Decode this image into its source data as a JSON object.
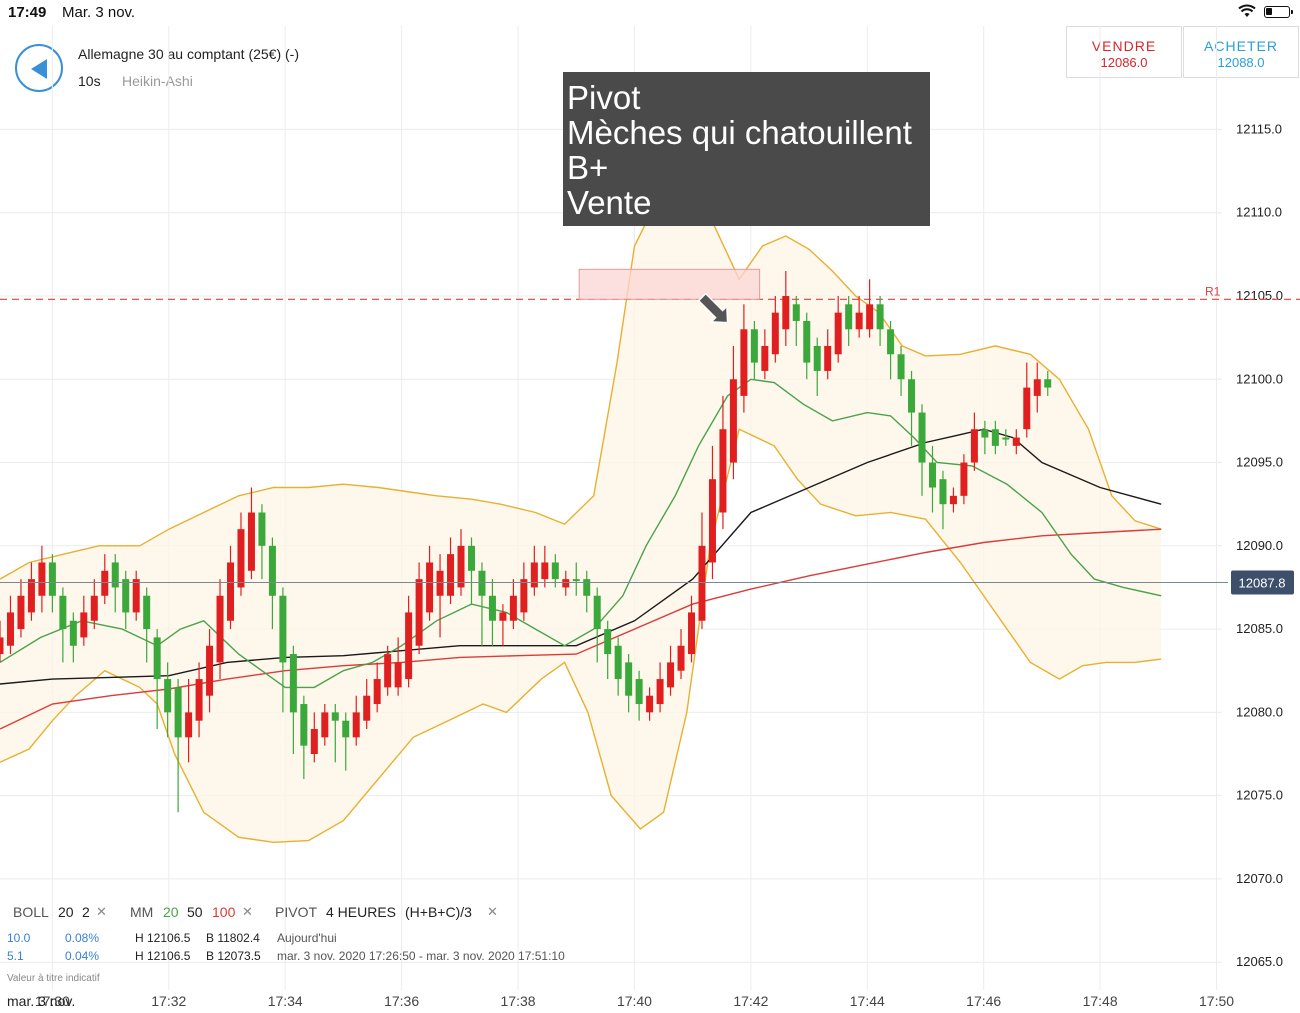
{
  "status": {
    "time": "17:49",
    "date": "Mar. 3 nov."
  },
  "header": {
    "instrument": "Allemagne 30 au comptant (25€) (-)",
    "timeframe": "10s",
    "chart_type": "Heikin-Ashi",
    "sell_label": "VENDRE",
    "sell_price": "12086.0",
    "buy_label": "ACHETER",
    "buy_price": "12088.0"
  },
  "annotation": [
    "Pivot",
    "Mèches qui chatouillent",
    "B+",
    "Vente"
  ],
  "legend": {
    "boll_name": "BOLL",
    "boll_p1": "20",
    "boll_p2": "2",
    "mm_name": "MM",
    "mm_p1": "20",
    "mm_p2": "50",
    "mm_p3": "100",
    "pivot_name": "PIVOT",
    "pivot_p1": "4 HEURES",
    "pivot_p2": "(H+B+C)/3",
    "row1_v1": "10.0",
    "row1_v2": "0.08%",
    "row1_h": "H 12106.5",
    "row1_b": "B 11802.4",
    "row1_period": "Aujourd'hui",
    "row2_v1": "5.1",
    "row2_v2": "0.04%",
    "row2_h": "H 12106.5",
    "row2_b": "B 12073.5",
    "row2_period": "mar. 3 nov. 2020 17:26:50 - mar. 3 nov. 2020 17:51:10",
    "disclaimer": "Valeur à titre indicatif",
    "date_label": "mar. 3 nov."
  },
  "colors": {
    "up": "#3aa83a",
    "down": "#e02020",
    "boll": "#e8b031",
    "mm20": "#4aa24a",
    "mm50": "#1a1a1a",
    "mm100": "#dd3a3a",
    "pivot": "#e04040",
    "accent": "#3a8fd6"
  },
  "chart_data": {
    "type": "candlestick",
    "y_ticks": [
      "12115.0",
      "12110.0",
      "12105.0",
      "12100.0",
      "12095.0",
      "12090.0",
      "12085.0",
      "12080.0",
      "12075.0",
      "12070.0",
      "12065.0"
    ],
    "x_ticks": [
      "17:30",
      "17:32",
      "17:34",
      "17:36",
      "17:38",
      "17:40",
      "17:42",
      "17:44",
      "17:46",
      "17:48",
      "17:50"
    ],
    "ylim": [
      12063,
      12121
    ],
    "x_range_minutes": [
      29.1,
      50.3
    ],
    "current_price": "12087.8",
    "pivot_label": "R1",
    "pivot_value": 12104.8,
    "highlight_zone": {
      "x": [
        39.05,
        42.15
      ],
      "y": [
        12104.8,
        12106.6
      ]
    },
    "arrow_at": {
      "x": 41.6,
      "y": 12103.4
    },
    "candles": [
      [
        29.1,
        12084.5,
        12083.5,
        12085.5,
        12083
      ],
      [
        29.28,
        12086,
        12084,
        12087,
        12083.5
      ],
      [
        29.46,
        12087,
        12085,
        12088,
        12084.5
      ],
      [
        29.64,
        12088,
        12086,
        12089,
        12085.5
      ],
      [
        29.82,
        12089,
        12087,
        12090,
        12086
      ],
      [
        30.0,
        12087,
        12089,
        12089.5,
        12086
      ],
      [
        30.18,
        12085,
        12087,
        12087.5,
        12083
      ],
      [
        30.36,
        12084,
        12085.5,
        12086,
        12083
      ],
      [
        30.54,
        12086,
        12084.5,
        12087,
        12084
      ],
      [
        30.72,
        12087,
        12085.5,
        12088,
        12085
      ],
      [
        30.9,
        12088.5,
        12087,
        12089.5,
        12086.5
      ],
      [
        31.08,
        12087.5,
        12089,
        12089.5,
        12086
      ],
      [
        31.26,
        12086,
        12088,
        12088.5,
        12085
      ],
      [
        31.44,
        12088,
        12086,
        12088.5,
        12085.5
      ],
      [
        31.62,
        12085,
        12087,
        12087.5,
        12083
      ],
      [
        31.8,
        12082,
        12084.5,
        12085,
        12079
      ],
      [
        31.98,
        12080,
        12082,
        12083,
        12078.5
      ],
      [
        32.16,
        12078.5,
        12081.5,
        12082,
        12074
      ],
      [
        32.34,
        12080,
        12078.5,
        12082,
        12077
      ],
      [
        32.52,
        12082,
        12079.5,
        12083,
        12078.5
      ],
      [
        32.7,
        12084,
        12081,
        12085,
        12080
      ],
      [
        32.88,
        12087,
        12083,
        12088,
        12082
      ],
      [
        33.06,
        12089,
        12085.5,
        12090,
        12085
      ],
      [
        33.24,
        12091,
        12087.5,
        12092,
        12087
      ],
      [
        33.42,
        12092,
        12088.5,
        12093.5,
        12088
      ],
      [
        33.6,
        12090,
        12092,
        12092.5,
        12088
      ],
      [
        33.78,
        12087,
        12090,
        12090.5,
        12085
      ],
      [
        33.96,
        12083,
        12087,
        12087.5,
        12080
      ],
      [
        34.14,
        12080,
        12083.5,
        12084,
        12077.5
      ],
      [
        34.32,
        12078,
        12080.5,
        12081,
        12076
      ],
      [
        34.5,
        12079,
        12077.5,
        12080,
        12077
      ],
      [
        34.68,
        12080,
        12078.5,
        12080.5,
        12078
      ],
      [
        34.86,
        12079.5,
        12080,
        12080.5,
        12077
      ],
      [
        35.04,
        12078.5,
        12079.5,
        12080,
        12076.5
      ],
      [
        35.22,
        12080,
        12078.5,
        12081,
        12078
      ],
      [
        35.4,
        12081,
        12079.5,
        12082,
        12079
      ],
      [
        35.58,
        12082,
        12080.5,
        12083,
        12080
      ],
      [
        35.76,
        12083.5,
        12081.5,
        12084,
        12081
      ],
      [
        35.94,
        12083,
        12081.5,
        12084.5,
        12081
      ],
      [
        36.12,
        12086,
        12082,
        12087,
        12081.5
      ],
      [
        36.3,
        12088,
        12084,
        12089,
        12083.5
      ],
      [
        36.48,
        12089,
        12086,
        12090,
        12085.5
      ],
      [
        36.66,
        12088.5,
        12087,
        12089.5,
        12084.5
      ],
      [
        36.84,
        12089.5,
        12087,
        12090.5,
        12086.5
      ],
      [
        37.02,
        12090,
        12087.5,
        12091,
        12087
      ],
      [
        37.2,
        12088.5,
        12090,
        12090.5,
        12086.5
      ],
      [
        37.38,
        12087,
        12088.5,
        12089,
        12084
      ],
      [
        37.56,
        12085.5,
        12087,
        12088,
        12084
      ],
      [
        37.74,
        12086,
        12085.5,
        12086.5,
        12084
      ],
      [
        37.92,
        12087,
        12085.5,
        12088,
        12085
      ],
      [
        38.1,
        12088,
        12086,
        12089,
        12085.5
      ],
      [
        38.28,
        12089,
        12087.5,
        12090,
        12087
      ],
      [
        38.46,
        12089,
        12088,
        12090,
        12087.5
      ],
      [
        38.64,
        12088,
        12089,
        12089.5,
        12087.5
      ],
      [
        38.82,
        12088,
        12087.5,
        12088.5,
        12087
      ],
      [
        39.0,
        12088,
        12088,
        12089,
        12087
      ],
      [
        39.18,
        12087,
        12088,
        12088.5,
        12086
      ],
      [
        39.36,
        12085,
        12087,
        12087.5,
        12083
      ],
      [
        39.54,
        12083.5,
        12085,
        12085.5,
        12082
      ],
      [
        39.72,
        12082,
        12084,
        12084.5,
        12081
      ],
      [
        39.9,
        12081,
        12083,
        12083.5,
        12080
      ],
      [
        40.08,
        12080.5,
        12082,
        12082.5,
        12079.5
      ],
      [
        40.26,
        12081,
        12080,
        12081.5,
        12079.5
      ],
      [
        40.44,
        12082,
        12080.5,
        12083,
        12080
      ],
      [
        40.62,
        12083,
        12081.5,
        12084,
        12081
      ],
      [
        40.8,
        12084,
        12082.5,
        12085,
        12082
      ],
      [
        40.98,
        12086,
        12083.5,
        12087,
        12083
      ],
      [
        41.16,
        12090,
        12085.5,
        12092,
        12085
      ],
      [
        41.34,
        12094,
        12089,
        12096,
        12088
      ],
      [
        41.52,
        12097,
        12092,
        12099,
        12091
      ],
      [
        41.7,
        12100,
        12095,
        12102,
        12094
      ],
      [
        41.88,
        12103,
        12099,
        12104.5,
        12098
      ],
      [
        42.06,
        12101,
        12103,
        12103.5,
        12100
      ],
      [
        42.24,
        12102,
        12100.5,
        12103,
        12100
      ],
      [
        42.42,
        12104,
        12101.5,
        12105,
        12101
      ],
      [
        42.6,
        12105,
        12103,
        12106.5,
        12102
      ],
      [
        42.78,
        12103.5,
        12104.5,
        12105,
        12102
      ],
      [
        42.96,
        12101,
        12103.5,
        12104,
        12100
      ],
      [
        43.14,
        12100.5,
        12102,
        12102.5,
        12099
      ],
      [
        43.32,
        12102,
        12100.5,
        12103,
        12100
      ],
      [
        43.5,
        12104,
        12101.5,
        12105,
        12101
      ],
      [
        43.68,
        12103,
        12104.5,
        12105,
        12102
      ],
      [
        43.86,
        12104,
        12103,
        12105,
        12102.5
      ],
      [
        44.04,
        12104.5,
        12103,
        12106,
        12102.5
      ],
      [
        44.22,
        12103,
        12104.5,
        12105,
        12102
      ],
      [
        44.4,
        12101.5,
        12103,
        12103.5,
        12100
      ],
      [
        44.58,
        12100,
        12101.5,
        12102,
        12099
      ],
      [
        44.76,
        12098,
        12100,
        12100.5,
        12096
      ],
      [
        44.94,
        12095,
        12098,
        12098.5,
        12093
      ],
      [
        45.12,
        12093.5,
        12095,
        12096,
        12092
      ],
      [
        45.3,
        12092.5,
        12094,
        12094.5,
        12091
      ],
      [
        45.48,
        12093,
        12092.5,
        12093.5,
        12092
      ],
      [
        45.66,
        12095,
        12093,
        12095.5,
        12092.5
      ],
      [
        45.84,
        12097,
        12095,
        12098,
        12094.5
      ],
      [
        46.02,
        12096.5,
        12097,
        12097.5,
        12095.5
      ],
      [
        46.2,
        12096,
        12097,
        12097.5,
        12095.5
      ],
      [
        46.38,
        12096.5,
        12096.5,
        12097,
        12096
      ],
      [
        46.56,
        12096.5,
        12096,
        12097,
        12095.5
      ],
      [
        46.74,
        12099.5,
        12097,
        12101,
        12096.5
      ],
      [
        46.92,
        12100,
        12099,
        12101,
        12098
      ],
      [
        47.1,
        12099.5,
        12100,
        12100.5,
        12099
      ]
    ]
  }
}
